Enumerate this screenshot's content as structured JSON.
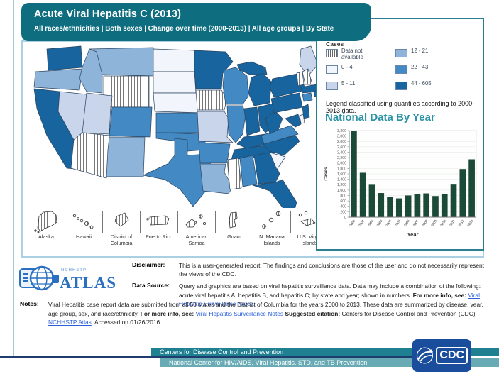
{
  "header": {
    "title": "Acute Viral Hepatitis  C (2013)",
    "subtitle": "All races/ethnicities | Both sexes | Change over time (2000-2013) | All age groups | By State"
  },
  "legend": {
    "title": "Cases",
    "note": "Legend classified using quantiles according to 2000-2013 data.",
    "items": [
      {
        "key": "na",
        "label": "Data not available",
        "hatched": true
      },
      {
        "key": "q1",
        "label": "0 - 4",
        "color": "#f2f5fb"
      },
      {
        "key": "q2",
        "label": "5 - 11",
        "color": "#c8d5ea"
      },
      {
        "key": "q3",
        "label": "12 - 21",
        "color": "#8fb4da"
      },
      {
        "key": "q4",
        "label": "22 - 43",
        "color": "#4389c4"
      },
      {
        "key": "q5",
        "label": "44 - 605",
        "color": "#17649f"
      }
    ]
  },
  "chart_data": {
    "type": "bar",
    "title": "National Data By Year",
    "xlabel": "Year",
    "ylabel": "Cases",
    "categories": [
      "2000",
      "2001",
      "2002",
      "2003",
      "2004",
      "2005",
      "2006",
      "2007",
      "2008",
      "2009",
      "2010",
      "2011",
      "2012",
      "2013"
    ],
    "values": [
      3197,
      1640,
      1223,
      891,
      758,
      694,
      802,
      845,
      878,
      781,
      850,
      1229,
      1778,
      2138
    ],
    "ylim": [
      0,
      3200
    ],
    "ytick_step": 200,
    "grid": true,
    "legend_position": "none",
    "bar_color": "#1c4a38"
  },
  "map": {
    "states": {
      "WA": "q5",
      "OR": "q3",
      "CA": "q5",
      "NV": "q2",
      "ID": "q3",
      "MT": "q3",
      "WY": "na",
      "UT": "q2",
      "CO": "q4",
      "AZ": "na",
      "NM": "q3",
      "ND": "q1",
      "SD": "q1",
      "NE": "q1",
      "KS": "q4",
      "OK": "q4",
      "TX": "q4",
      "MN": "q5",
      "IA": "na",
      "MO": "q2",
      "AR": "q4",
      "LA": "q3",
      "WI": "q4",
      "IL": "q4",
      "MI": "q5",
      "IN": "q5",
      "OH": "q5",
      "KY": "q5",
      "TN": "q5",
      "MS": "na",
      "AL": "q4",
      "GA": "q5",
      "FL": "q5",
      "SC": "q1",
      "NC": "q5",
      "VA": "q4",
      "WV": "q5",
      "PA": "q5",
      "NY": "q5",
      "NJ": "q5",
      "MD": "q5",
      "DE": "q1",
      "CT": "q4",
      "RI": "q5",
      "MA": "q5",
      "VT": "na",
      "NH": "na",
      "ME": "q2"
    },
    "insets": [
      {
        "label": "Alaska",
        "category": "na"
      },
      {
        "label": "Hawaii",
        "category": "na"
      },
      {
        "label": "District of Columbia",
        "category": "na"
      },
      {
        "label": "Puerto Rico",
        "category": "na"
      },
      {
        "label": "American Samoa",
        "category": "na"
      },
      {
        "label": "Guam",
        "category": "na"
      },
      {
        "label": "N. Mariana Islands",
        "category": "na"
      },
      {
        "label": "U.S. Virgin Islands",
        "category": "na"
      }
    ]
  },
  "info": {
    "disclaimer_label": "Disclaimer:",
    "disclaimer_text": "This is a user-generated report. The findings and conclusions are those of the user and do not necessarily represent the views of the CDC.",
    "datasource_label": "Data Source:",
    "datasource_text": "Query and graphics are based on viral hepatitis surveillance data. Data may include a combination of the following: acute viral hepatitis A, hepatitis B, and hepatitis C; by state and year; shown in numbers. ",
    "datasource_more": "For more info, see: ",
    "datasource_link": "Viral Hepatitis Surveillance Notes.",
    "notes_label": "Notes:",
    "notes_text": "Viral Hepatitis case report data are submitted from all 50 states and the District of Columbia for the years 2000 to 2013. These data are summarized by disease, year, age group, sex, and race/ethnicity. ",
    "notes_more": "For more info, see: ",
    "notes_link1": "Viral Hepatitis Surveillance Notes",
    "notes_citation_label": " Suggested citation: ",
    "notes_citation_text": "Centers for Disease Control and Prevention (CDC) ",
    "notes_link2": "NCHHSTP Atlas",
    "notes_accessed": ". Accessed on 01/26/2016."
  },
  "logo": {
    "atlas_small": "NCHHSTP",
    "atlas_text": "ATLAS",
    "atlas_color": "#2a6fc0"
  },
  "footer": {
    "line1": "Centers for Disease Control and Prevention",
    "line2": "National Center for HIV/AIDS, Viral Hepatitis, STD, and TB Prevention",
    "cdc_label": "CDC",
    "bar1_color": "#1f8092",
    "bar2_color": "#69abb5",
    "cdc_blue": "#1a4e9d"
  },
  "colors": {
    "header_teal": "#0e6e80",
    "panel_border_teal": "#2a7f91",
    "map_border_blue": "#abd0e4",
    "chart_title_teal": "#2b93a4",
    "state_border": "#2c4662",
    "link_blue": "#2b5fd9"
  }
}
